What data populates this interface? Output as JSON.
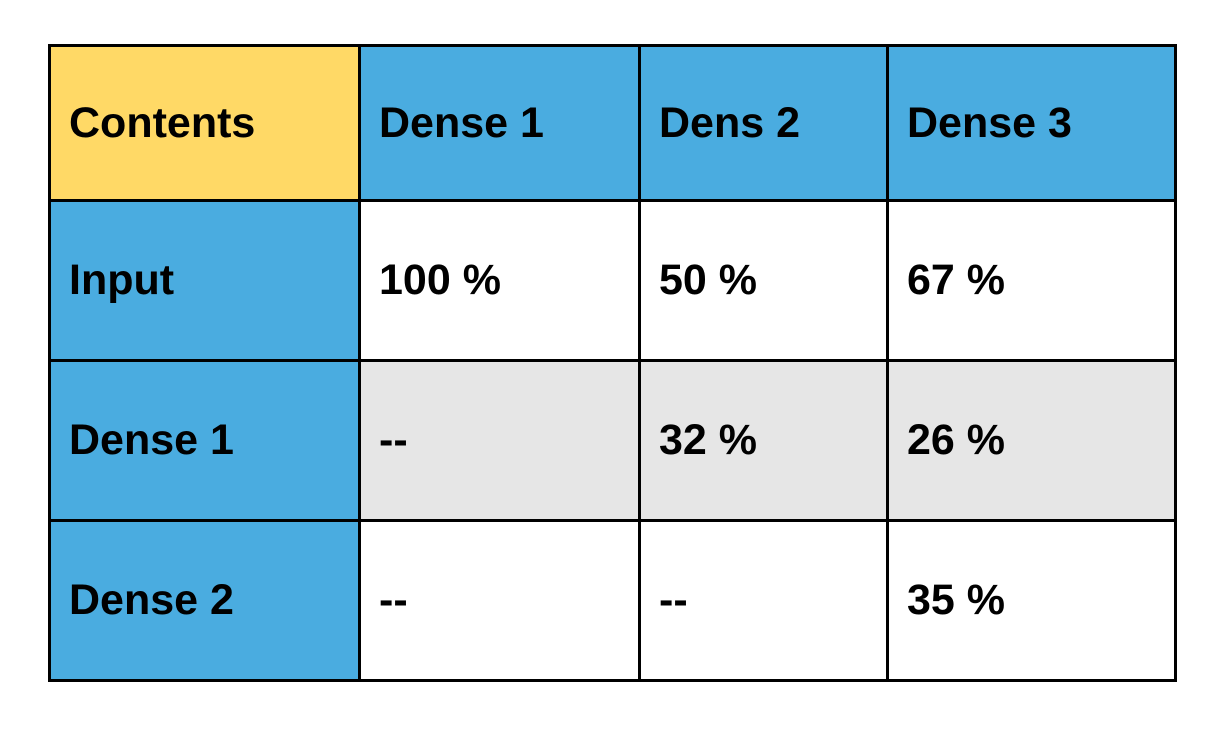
{
  "colors": {
    "corner": "#FFD966",
    "header": "#4AACE0",
    "row_label": "#4AACE0",
    "cell_white": "#FFFFFF",
    "cell_shaded": "#E6E6E6",
    "border": "#000000"
  },
  "table": {
    "corner_label": "Contents",
    "columns": [
      "Dense 1",
      "Dens 2",
      "Dense 3"
    ],
    "rows": [
      {
        "label": "Input",
        "cells": [
          "100 %",
          "50 %",
          "67 %"
        ],
        "shade": "cell_white"
      },
      {
        "label": "Dense 1",
        "cells": [
          "--",
          "32 %",
          "26 %"
        ],
        "shade": "cell_shaded"
      },
      {
        "label": "Dense 2",
        "cells": [
          "--",
          "--",
          "35 %"
        ],
        "shade": "cell_white"
      }
    ]
  }
}
